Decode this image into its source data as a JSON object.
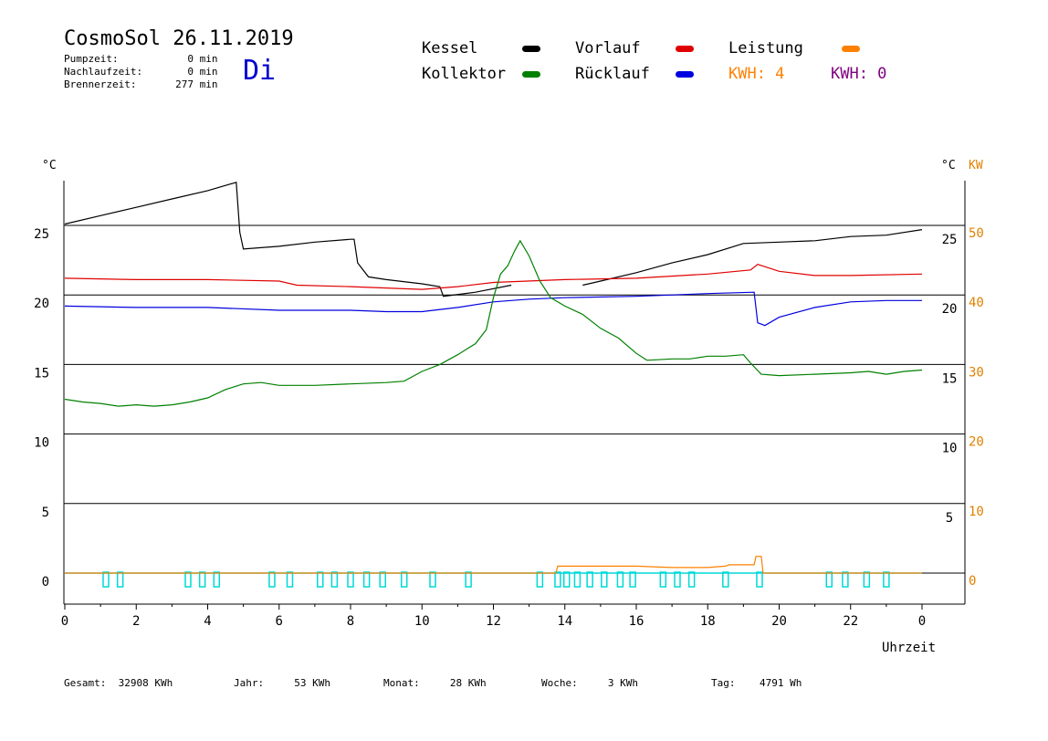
{
  "header": {
    "title": "CosmoSol 26.11.2019",
    "day": "Di",
    "stats": [
      {
        "label": "Pumpzeit:",
        "value": "0",
        "unit": "min"
      },
      {
        "label": "Nachlaufzeit:",
        "value": "0",
        "unit": "min"
      },
      {
        "label": "Brennerzeit:",
        "value": "277",
        "unit": "min"
      }
    ]
  },
  "legend": {
    "kessel": "Kessel",
    "kollektor": "Kollektor",
    "vorlauf": "Vorlauf",
    "ruecklauf": "Rücklauf",
    "leistung": "Leistung",
    "kwh_orange": "KWH: 4",
    "kwh_purple": "KWH: 0"
  },
  "colors": {
    "kessel": "#000000",
    "kollektor": "#008000",
    "vorlauf": "#e00000",
    "ruecklauf": "#0000e0",
    "leistung": "#ff8000",
    "purple": "#800080",
    "pump": "#00d8d8",
    "dayname": "#0000d0"
  },
  "footer": [
    {
      "label": "Gesamt:",
      "value": "32908 KWh"
    },
    {
      "label": "Jahr:",
      "value": "53 KWh"
    },
    {
      "label": "Monat:",
      "value": "28 KWh"
    },
    {
      "label": "Woche:",
      "value": "3 KWh"
    },
    {
      "label": "Tag:",
      "value": "4791 Wh"
    }
  ],
  "chart_data": {
    "type": "line",
    "xlabel": "Uhrzeit",
    "ylabel_left": "°C",
    "ylabel_right": "°C",
    "ylabel_right2": "KW",
    "x_ticks": [
      "0",
      "2",
      "4",
      "6",
      "8",
      "10",
      "12",
      "14",
      "16",
      "18",
      "20",
      "22",
      "0"
    ],
    "y_left_ticks": [
      "0",
      "5",
      "10",
      "15",
      "20",
      "25"
    ],
    "y_right_ticks": [
      "5",
      "10",
      "15",
      "20",
      "25"
    ],
    "y_kw_ticks": [
      "0",
      "10",
      "20",
      "30",
      "40",
      "50"
    ],
    "xlim": [
      0,
      24
    ],
    "ylim": [
      -1.7,
      28.2
    ],
    "grid": "horizontal",
    "series": [
      {
        "name": "Kessel",
        "color": "#000000",
        "points": [
          [
            0,
            25.1
          ],
          [
            1,
            25.7
          ],
          [
            2,
            26.3
          ],
          [
            3,
            26.9
          ],
          [
            4,
            27.5
          ],
          [
            4.8,
            28.1
          ],
          [
            4.9,
            24.5
          ],
          [
            5,
            23.3
          ],
          [
            6,
            23.5
          ],
          [
            7,
            23.8
          ],
          [
            8,
            24
          ],
          [
            8.1,
            24.0
          ],
          [
            8.2,
            22.3
          ],
          [
            8.5,
            21.3
          ],
          [
            9,
            21.1
          ],
          [
            10,
            20.8
          ],
          [
            10.5,
            20.6
          ],
          [
            10.6,
            19.9
          ],
          [
            11.5,
            20.2
          ],
          [
            12.5,
            20.7
          ]
        ]
      },
      {
        "name": "Kessel",
        "color": "#000000",
        "points": [
          [
            14.5,
            20.7
          ],
          [
            15,
            21
          ],
          [
            16,
            21.6
          ],
          [
            17,
            22.3
          ],
          [
            18,
            22.9
          ],
          [
            19,
            23.7
          ],
          [
            20,
            23.8
          ],
          [
            21,
            23.9
          ],
          [
            22,
            24.2
          ],
          [
            23,
            24.3
          ],
          [
            24,
            24.7
          ]
        ]
      },
      {
        "name": "Vorlauf",
        "color": "#e00000",
        "points": [
          [
            0,
            21.2
          ],
          [
            2,
            21.1
          ],
          [
            4,
            21.1
          ],
          [
            6,
            21
          ],
          [
            6.5,
            20.7
          ],
          [
            8,
            20.6
          ],
          [
            9,
            20.5
          ],
          [
            10,
            20.4
          ],
          [
            11,
            20.6
          ],
          [
            12,
            20.9
          ],
          [
            14,
            21.1
          ],
          [
            16,
            21.2
          ],
          [
            18,
            21.5
          ],
          [
            19.2,
            21.8
          ],
          [
            19.4,
            22.2
          ],
          [
            20,
            21.7
          ],
          [
            21,
            21.4
          ],
          [
            22,
            21.4
          ],
          [
            24,
            21.5
          ]
        ]
      },
      {
        "name": "Rücklauf",
        "color": "#0000e0",
        "points": [
          [
            0,
            19.2
          ],
          [
            2,
            19.1
          ],
          [
            4,
            19.1
          ],
          [
            6,
            18.9
          ],
          [
            8,
            18.9
          ],
          [
            9,
            18.8
          ],
          [
            10,
            18.8
          ],
          [
            11,
            19.1
          ],
          [
            12,
            19.5
          ],
          [
            13,
            19.7
          ],
          [
            14,
            19.8
          ],
          [
            16,
            19.9
          ],
          [
            18,
            20.1
          ],
          [
            19.3,
            20.2
          ],
          [
            19.4,
            18
          ],
          [
            19.6,
            17.8
          ],
          [
            20,
            18.4
          ],
          [
            21,
            19.1
          ],
          [
            22,
            19.5
          ],
          [
            23,
            19.6
          ],
          [
            24,
            19.6
          ]
        ]
      },
      {
        "name": "Kollektor",
        "color": "#008000",
        "points": [
          [
            0,
            12.5
          ],
          [
            0.5,
            12.3
          ],
          [
            1,
            12.2
          ],
          [
            1.5,
            12.0
          ],
          [
            2,
            12.1
          ],
          [
            2.5,
            12.0
          ],
          [
            3,
            12.1
          ],
          [
            3.5,
            12.3
          ],
          [
            4,
            12.6
          ],
          [
            4.5,
            13.2
          ],
          [
            5,
            13.6
          ],
          [
            5.5,
            13.7
          ],
          [
            6,
            13.5
          ],
          [
            7,
            13.5
          ],
          [
            8,
            13.6
          ],
          [
            9,
            13.7
          ],
          [
            9.5,
            13.8
          ],
          [
            10,
            14.5
          ],
          [
            10.5,
            15
          ],
          [
            11,
            15.7
          ],
          [
            11.5,
            16.5
          ],
          [
            11.8,
            17.5
          ],
          [
            12.0,
            19.8
          ],
          [
            12.2,
            21.5
          ],
          [
            12.4,
            22.1
          ],
          [
            12.6,
            23.2
          ],
          [
            12.75,
            23.9
          ],
          [
            13,
            22.8
          ],
          [
            13.3,
            21
          ],
          [
            13.6,
            19.8
          ],
          [
            14,
            19.2
          ],
          [
            14.5,
            18.6
          ],
          [
            15,
            17.6
          ],
          [
            15.5,
            16.9
          ],
          [
            16,
            15.8
          ],
          [
            16.3,
            15.3
          ],
          [
            17,
            15.4
          ],
          [
            17.5,
            15.4
          ],
          [
            18,
            15.6
          ],
          [
            18.5,
            15.6
          ],
          [
            19,
            15.7
          ],
          [
            19.2,
            15.1
          ],
          [
            19.5,
            14.3
          ],
          [
            20,
            14.2
          ],
          [
            21,
            14.3
          ],
          [
            22,
            14.4
          ],
          [
            22.5,
            14.5
          ],
          [
            23,
            14.3
          ],
          [
            23.5,
            14.5
          ],
          [
            24,
            14.6
          ]
        ]
      },
      {
        "name": "Leistung",
        "color": "#ff8000",
        "points": [
          [
            0,
            0
          ],
          [
            13.75,
            0
          ],
          [
            13.8,
            0.5
          ],
          [
            16,
            0.5
          ],
          [
            17,
            0.4
          ],
          [
            18,
            0.4
          ],
          [
            18.5,
            0.5
          ],
          [
            18.6,
            0.6
          ],
          [
            19.3,
            0.6
          ],
          [
            19.35,
            1.2
          ],
          [
            19.5,
            1.2
          ],
          [
            19.55,
            0
          ],
          [
            24,
            0
          ]
        ]
      }
    ],
    "pump_pulses": [
      1.15,
      1.55,
      3.45,
      3.85,
      4.25,
      5.8,
      6.3,
      7.15,
      7.55,
      8.0,
      8.45,
      8.9,
      9.5,
      10.3,
      11.3,
      13.3,
      13.8,
      14.05,
      14.35,
      14.7,
      15.1,
      15.55,
      15.9,
      16.75,
      17.15,
      17.55,
      18.5,
      19.45,
      21.4,
      21.85,
      22.45,
      23.0
    ]
  }
}
